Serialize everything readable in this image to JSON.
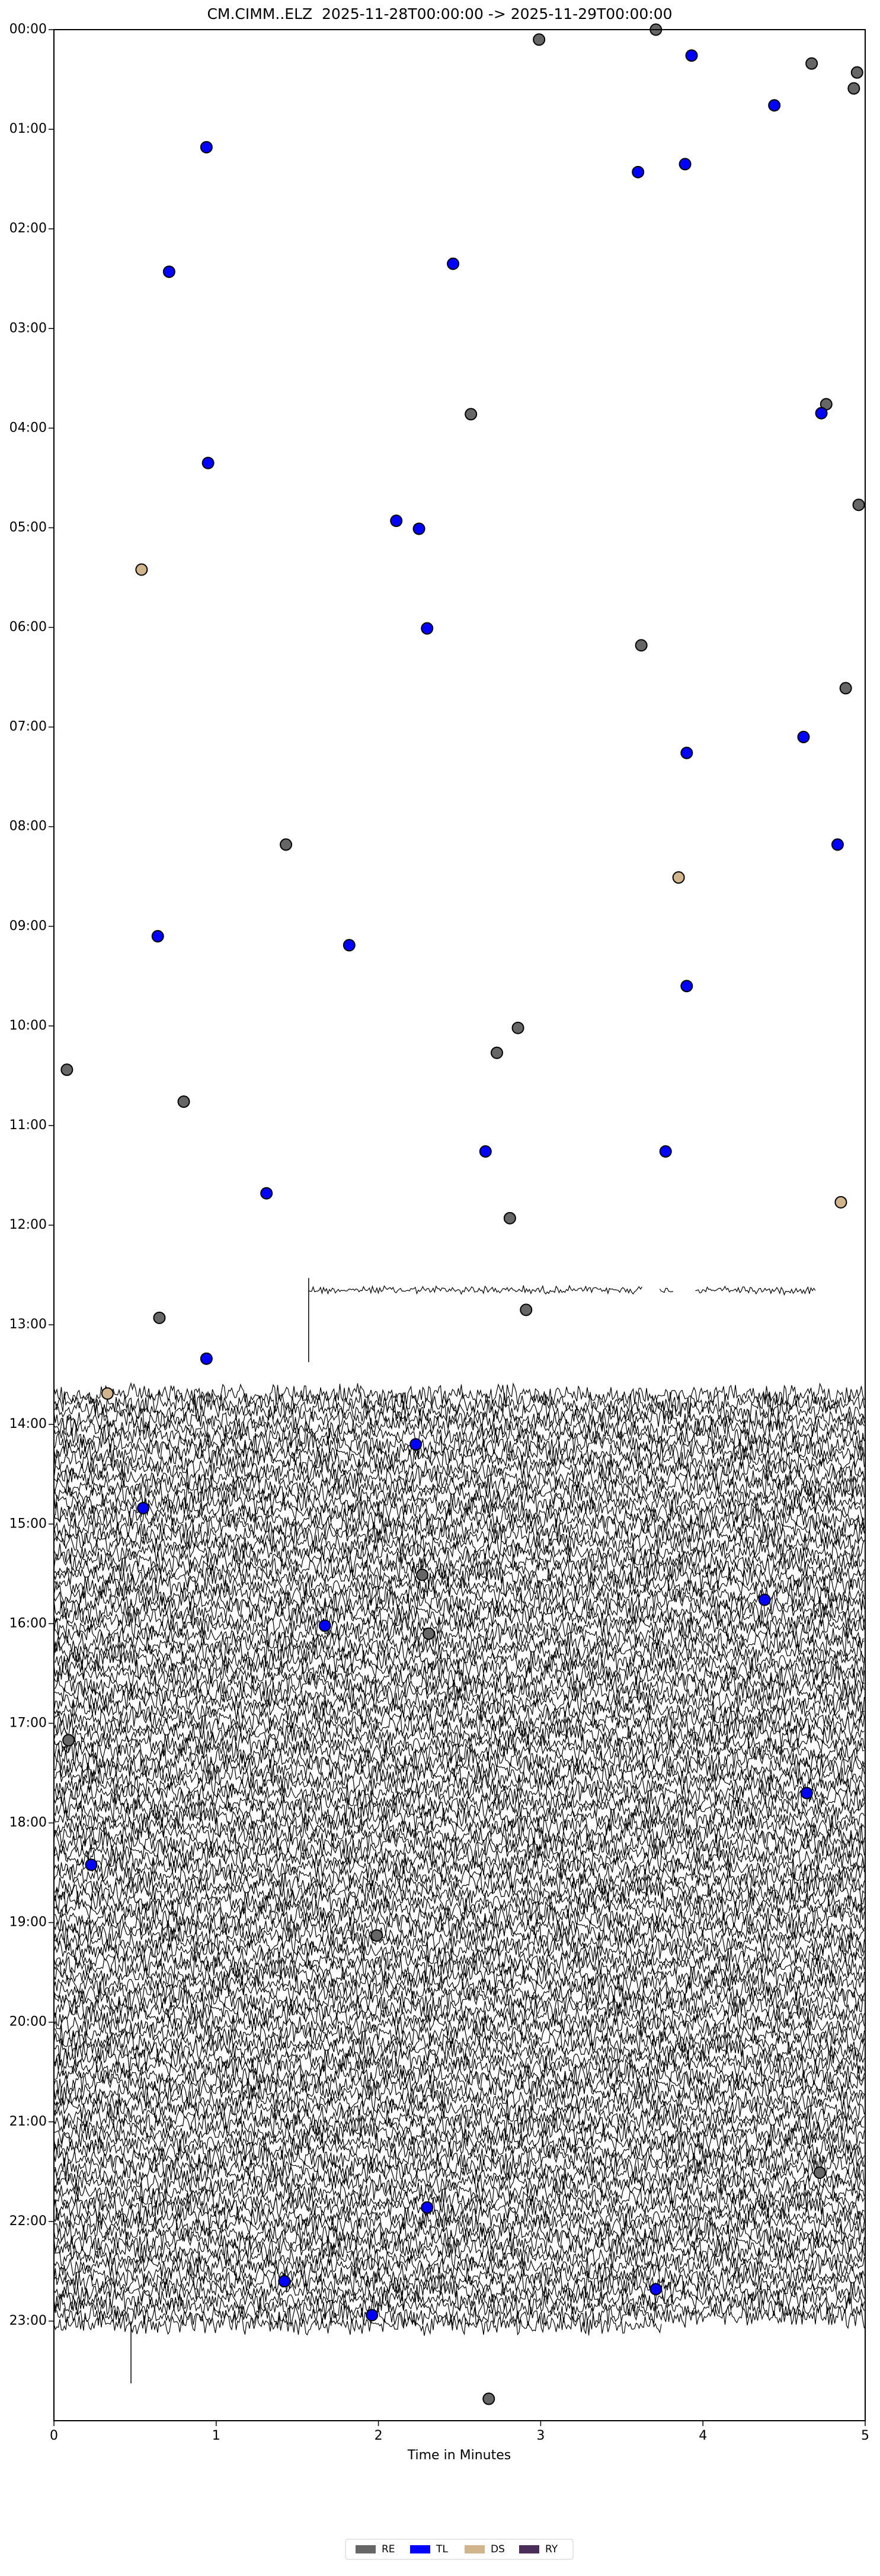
{
  "chart_data": {
    "type": "scatter",
    "title": "CM.CIMM..ELZ  2025-11-28T00:00:00 -> 2025-11-29T00:00:00",
    "x_label": "Time in Minutes",
    "xlim": [
      0,
      5
    ],
    "xticks": [
      0,
      1,
      2,
      3,
      4,
      5
    ],
    "ylim": [
      0,
      24
    ],
    "y_inverted": true,
    "yticks": [
      {
        "value": 0,
        "label": "00:00"
      },
      {
        "value": 1,
        "label": "01:00"
      },
      {
        "value": 2,
        "label": "02:00"
      },
      {
        "value": 3,
        "label": "03:00"
      },
      {
        "value": 4,
        "label": "04:00"
      },
      {
        "value": 5,
        "label": "05:00"
      },
      {
        "value": 6,
        "label": "06:00"
      },
      {
        "value": 7,
        "label": "07:00"
      },
      {
        "value": 8,
        "label": "08:00"
      },
      {
        "value": 9,
        "label": "09:00"
      },
      {
        "value": 10,
        "label": "10:00"
      },
      {
        "value": 11,
        "label": "11:00"
      },
      {
        "value": 12,
        "label": "12:00"
      },
      {
        "value": 13,
        "label": "13:00"
      },
      {
        "value": 14,
        "label": "14:00"
      },
      {
        "value": 15,
        "label": "15:00"
      },
      {
        "value": 16,
        "label": "16:00"
      },
      {
        "value": 17,
        "label": "17:00"
      },
      {
        "value": 18,
        "label": "18:00"
      },
      {
        "value": 19,
        "label": "19:00"
      },
      {
        "value": 20,
        "label": "20:00"
      },
      {
        "value": 21,
        "label": "21:00"
      },
      {
        "value": 22,
        "label": "22:00"
      },
      {
        "value": 23,
        "label": "23:00"
      }
    ],
    "series": [
      {
        "name": "RE",
        "color": "#666666",
        "x": [
          3.71,
          2.99,
          4.67,
          4.95,
          4.93,
          4.76,
          2.57,
          4.96,
          3.62,
          4.88,
          1.43,
          2.86,
          2.73,
          0.08,
          0.8,
          2.81,
          0.65,
          2.91,
          2.27,
          2.31,
          0.09,
          1.99,
          4.72,
          2.68
        ],
        "values": [
          0.0,
          0.1,
          0.34,
          0.43,
          0.59,
          3.76,
          3.86,
          4.77,
          6.18,
          6.61,
          8.18,
          10.02,
          10.27,
          10.44,
          10.76,
          11.93,
          12.93,
          12.85,
          15.51,
          16.1,
          17.17,
          19.13,
          21.51,
          23.78
        ]
      },
      {
        "name": "TL",
        "color": "#0000ff",
        "x": [
          3.93,
          4.44,
          0.94,
          3.89,
          3.6,
          2.46,
          0.71,
          4.73,
          0.95,
          2.11,
          2.25,
          2.3,
          4.62,
          3.9,
          4.83,
          0.64,
          1.82,
          3.9,
          2.66,
          3.77,
          1.31,
          0.94,
          2.23,
          0.55,
          1.67,
          4.38,
          4.64,
          0.23,
          2.3,
          1.42,
          3.71,
          1.96
        ],
        "values": [
          0.26,
          0.76,
          1.18,
          1.35,
          1.43,
          2.35,
          2.43,
          3.85,
          4.35,
          4.93,
          5.01,
          6.01,
          7.1,
          7.26,
          8.18,
          9.1,
          9.19,
          9.6,
          11.26,
          11.26,
          11.68,
          13.34,
          14.2,
          14.84,
          16.02,
          15.76,
          17.7,
          18.42,
          21.86,
          22.6,
          22.68,
          22.94
        ]
      },
      {
        "name": "DS",
        "color": "#d2b48c",
        "x": [
          0.54,
          3.85,
          4.85,
          0.33
        ],
        "values": [
          5.42,
          8.51,
          11.77,
          13.69
        ]
      },
      {
        "name": "RY",
        "color": "#4b2d5a",
        "x": [],
        "values": []
      }
    ]
  }
}
